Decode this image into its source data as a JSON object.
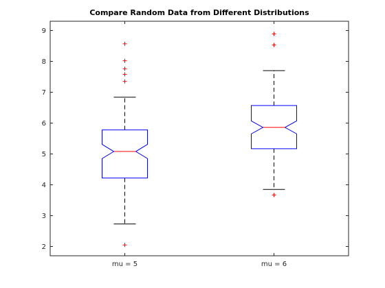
{
  "chart_data": {
    "type": "box",
    "title": "Compare Random Data from Different Distributions",
    "xlabel": "",
    "ylabel": "",
    "ylim": [
      1.7,
      9.3
    ],
    "yticks": [
      2,
      3,
      4,
      5,
      6,
      7,
      8,
      9
    ],
    "categories": [
      "mu = 5",
      "mu = 6"
    ],
    "notched": true,
    "boxes": [
      {
        "label": "mu = 5",
        "whisker_low": 2.73,
        "q1": 4.22,
        "notch_low": 4.85,
        "median": 5.08,
        "notch_high": 5.31,
        "q3": 5.78,
        "whisker_high": 6.84,
        "outliers": [
          2.05,
          7.35,
          7.58,
          7.76,
          8.02,
          8.57
        ]
      },
      {
        "label": "mu = 6",
        "whisker_low": 3.85,
        "q1": 5.17,
        "notch_low": 5.65,
        "median": 5.86,
        "notch_high": 6.07,
        "q3": 6.57,
        "whisker_high": 7.7,
        "outliers": [
          3.67,
          8.53,
          8.89
        ]
      }
    ],
    "colors": {
      "box": "#0000ff",
      "median": "#ff0000",
      "outlier": "#ff0000",
      "whisker": "#000000",
      "axis": "#262626"
    }
  }
}
